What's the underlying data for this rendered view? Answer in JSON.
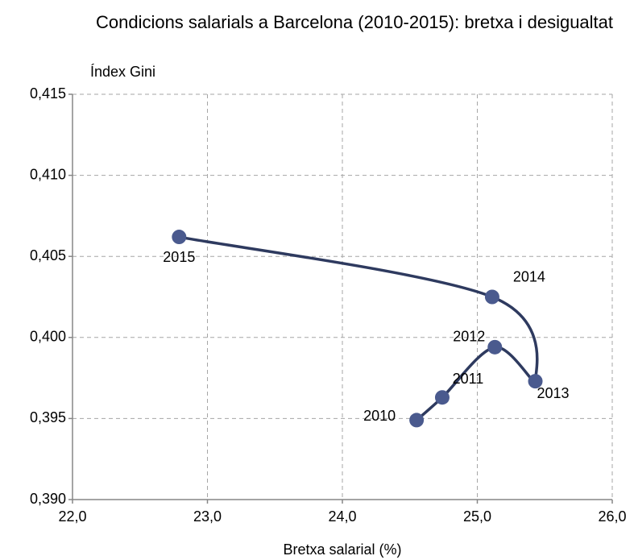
{
  "chart_data": {
    "type": "line",
    "title": "Condicions salarials a Barcelona (2010-2015): bretxa i desigualtat",
    "x_label": "Bretxa salarial (%)",
    "y_label": "Índex Gini",
    "series": [
      {
        "name": "Barcelona",
        "color": "#2e3a5f",
        "marker_color": "#4a5a8e",
        "labels": [
          "2010",
          "2011",
          "2012",
          "2013",
          "2014",
          "2015"
        ],
        "x": [
          24.55,
          24.74,
          25.13,
          25.43,
          25.11,
          22.79
        ],
        "values": [
          0.3949,
          0.3963,
          0.3994,
          0.3973,
          0.4025,
          0.4062
        ]
      }
    ],
    "xlim": [
      22,
      26
    ],
    "xticks": [
      {
        "value": 22,
        "label": "22,0"
      },
      {
        "value": 23,
        "label": "23,0"
      },
      {
        "value": 24,
        "label": "24,0"
      },
      {
        "value": 25,
        "label": "25,0"
      },
      {
        "value": 26,
        "label": "26,0"
      }
    ],
    "ylim": [
      0.39,
      0.415
    ],
    "yticks": [
      {
        "value": 0.39,
        "label": "0,390"
      },
      {
        "value": 0.395,
        "label": "0,395"
      },
      {
        "value": 0.4,
        "label": "0,400"
      },
      {
        "value": 0.405,
        "label": "0,405"
      },
      {
        "value": 0.41,
        "label": "0,410"
      },
      {
        "value": 0.415,
        "label": "0,415"
      }
    ],
    "grid": true
  }
}
